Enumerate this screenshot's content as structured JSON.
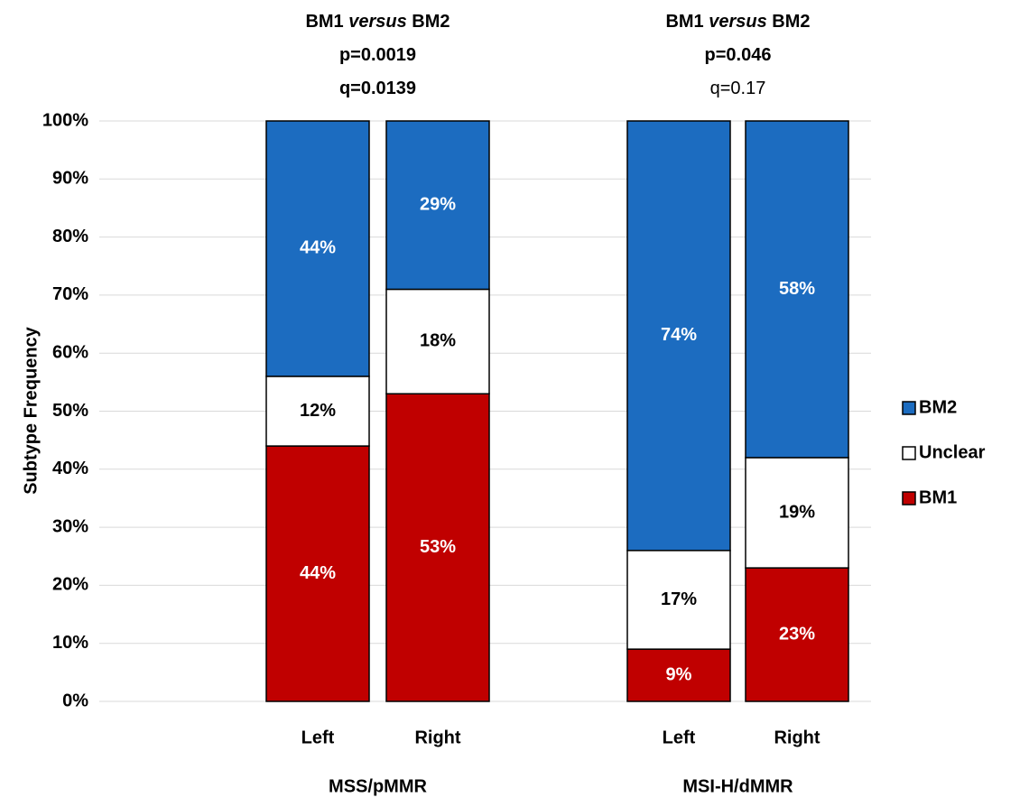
{
  "chart_data": {
    "type": "stacked-bar",
    "y_label": "Subtype Frequency",
    "categories": [
      "Left",
      "Right",
      "Left",
      "Right"
    ],
    "groups": [
      {
        "name": "MSS/pMMR",
        "indices": [
          0,
          1
        ],
        "annotation": [
          {
            "parts": [
              "BM1 ",
              "versus",
              " BM2"
            ],
            "bold": true
          },
          {
            "parts": [
              "p=0.0019"
            ],
            "bold": true
          },
          {
            "parts": [
              "q=0.0139"
            ],
            "bold": true
          }
        ]
      },
      {
        "name": "MSI-H/dMMR",
        "indices": [
          2,
          3
        ],
        "annotation": [
          {
            "parts": [
              "BM1 ",
              "versus",
              " BM2"
            ],
            "bold": true
          },
          {
            "parts": [
              "p=0.046"
            ],
            "bold": true
          },
          {
            "parts": [
              "q=0.17"
            ],
            "bold": false
          }
        ]
      }
    ],
    "series": [
      {
        "name": "BM1",
        "color": "#c00000",
        "label_color": "#ffffff",
        "values": [
          44,
          53,
          9,
          23
        ],
        "value_labels": [
          "44%",
          "53%",
          "9%",
          "23%"
        ]
      },
      {
        "name": "Unclear",
        "color": "#ffffff",
        "label_color": "#000000",
        "values": [
          12,
          18,
          17,
          19
        ],
        "value_labels": [
          "12%",
          "18%",
          "17%",
          "19%"
        ]
      },
      {
        "name": "BM2",
        "color": "#1c6cc0",
        "label_color": "#ffffff",
        "values": [
          44,
          29,
          74,
          58
        ],
        "value_labels": [
          "44%",
          "29%",
          "74%",
          "58%"
        ]
      }
    ],
    "ylim": [
      0,
      100
    ],
    "yticks": [
      {
        "value": 0,
        "label": "0%"
      },
      {
        "value": 10,
        "label": "10%"
      },
      {
        "value": 20,
        "label": "20%"
      },
      {
        "value": 30,
        "label": "30%"
      },
      {
        "value": 40,
        "label": "40%"
      },
      {
        "value": 50,
        "label": "50%"
      },
      {
        "value": 60,
        "label": "60%"
      },
      {
        "value": 70,
        "label": "70%"
      },
      {
        "value": 80,
        "label": "80%"
      },
      {
        "value": 90,
        "label": "90%"
      },
      {
        "value": 100,
        "label": "100%"
      }
    ],
    "grid": true
  }
}
